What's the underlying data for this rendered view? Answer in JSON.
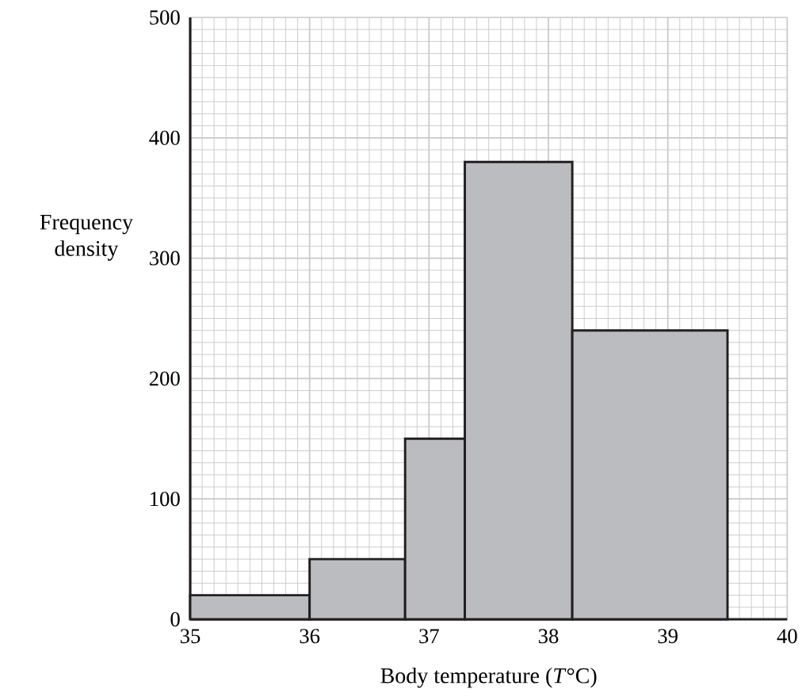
{
  "chart_data": {
    "type": "histogram",
    "xlabel": "Body temperature (*T*°C)",
    "ylabel": "Frequency density",
    "bins": [
      35,
      36,
      36.8,
      37.3,
      38.2,
      39.5
    ],
    "values": [
      20,
      50,
      150,
      380,
      240
    ],
    "color": "#bbbcc0",
    "xlim": [
      35,
      40
    ],
    "ylim": [
      0,
      500
    ],
    "xticks": [
      35,
      36,
      37,
      38,
      39,
      40
    ],
    "yticks": [
      0,
      100,
      200,
      300,
      400,
      500
    ],
    "grid": true
  }
}
